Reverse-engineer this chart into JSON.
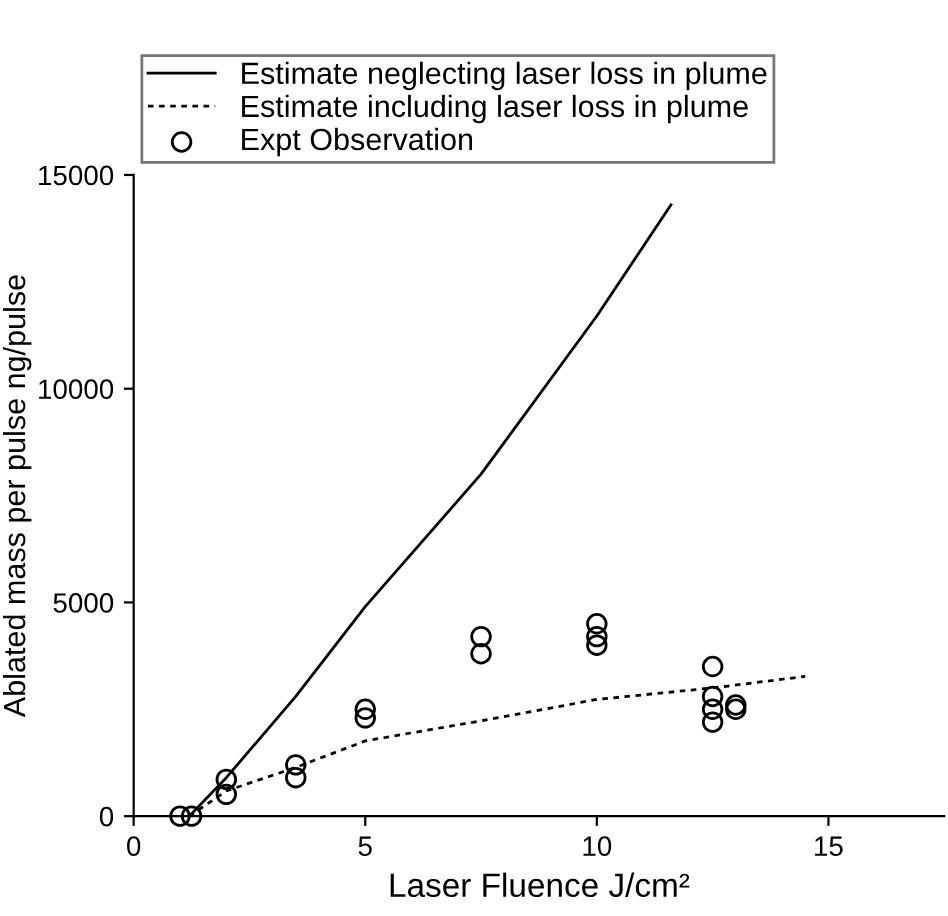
{
  "chart_data": {
    "type": "line",
    "xlabel": "Laser Fluence J/cm²",
    "ylabel": "Ablated mass per pulse ng/pulse",
    "xlim": [
      0,
      17.5
    ],
    "xticks": [
      0,
      5,
      10,
      15
    ],
    "ylim": [
      0,
      15000
    ],
    "yticks": [
      0,
      5000,
      10000,
      15000
    ],
    "grid": false,
    "legend": "top",
    "series": [
      {
        "name": "Estimate neglecting laser loss in plume",
        "line_style": "solid",
        "marker": "none",
        "color": "#000000",
        "x": [
          1.2,
          2,
          3.5,
          5,
          7.5,
          10,
          11.6
        ],
        "values": [
          0,
          900,
          2800,
          4900,
          8000,
          11700,
          14300
        ]
      },
      {
        "name": "Estimate including laser loss in plume",
        "line_style": "dotted",
        "marker": "none",
        "color": "#000000",
        "x": [
          1.2,
          2,
          3.5,
          5,
          7.5,
          10,
          12.5,
          14.5
        ],
        "values": [
          0,
          590,
          1140,
          1760,
          2230,
          2730,
          3000,
          3270
        ]
      },
      {
        "name": "Expt Observation",
        "type": "scatter",
        "marker": "circle",
        "color": "#000000",
        "x": [
          1,
          1.25,
          2,
          2,
          3.5,
          3.5,
          5,
          5,
          7.5,
          7.5,
          10,
          10,
          10,
          12.5,
          12.5,
          12.5,
          12.5,
          13,
          13
        ],
        "values": [
          0,
          0,
          860,
          510,
          1200,
          900,
          2500,
          2300,
          4200,
          3800,
          4500,
          4200,
          4000,
          3500,
          2800,
          2500,
          2200,
          2600,
          2500
        ]
      }
    ]
  }
}
